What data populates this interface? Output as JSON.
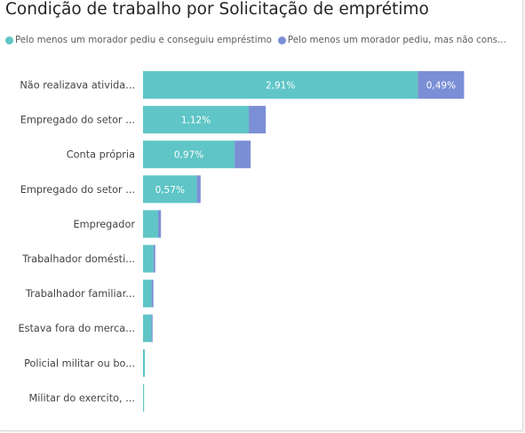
{
  "header": {
    "title": "Condição de trabalho por Solicitação de emprétimo"
  },
  "legend": {
    "items": [
      {
        "label": "Pelo menos um morador pediu e conseguiu empréstimo",
        "color": "#5fc5c6"
      },
      {
        "label": "Pelo menos um morador pediu, mas não cons...",
        "color": "#7b8fd6"
      }
    ]
  },
  "chart_data": {
    "type": "bar",
    "orientation": "horizontal",
    "stacked": true,
    "title": "Condição de trabalho por Solicitação de emprétimo",
    "categories": [
      "Não realizava ativida...",
      "Empregado do setor ...",
      "Conta própria",
      "Empregado do setor ...",
      "Empregador",
      "Trabalhador domésti...",
      "Trabalhador familiar...",
      "Estava fora do merca...",
      "Policial militar ou bo...",
      "Militar do exercito, ..."
    ],
    "series": [
      {
        "name": "Pelo menos um morador pediu e conseguiu empréstimo",
        "color": "#5fc5c6",
        "values": [
          2.91,
          1.12,
          0.97,
          0.57,
          0.16,
          0.11,
          0.09,
          0.09,
          0.02,
          0.01
        ],
        "labels": [
          "2,91%",
          "1,12%",
          "0,97%",
          "0,57%",
          "",
          "",
          "",
          "",
          "",
          ""
        ]
      },
      {
        "name": "Pelo menos um morador pediu, mas não cons...",
        "color": "#7b8fd6",
        "values": [
          0.49,
          0.18,
          0.17,
          0.04,
          0.03,
          0.02,
          0.02,
          0.01,
          0.0,
          0.0
        ],
        "labels": [
          "0,49%",
          "",
          "",
          "",
          "",
          "",
          "",
          "",
          "",
          ""
        ]
      }
    ],
    "xlim": [
      0,
      3.4
    ],
    "grid": false
  }
}
